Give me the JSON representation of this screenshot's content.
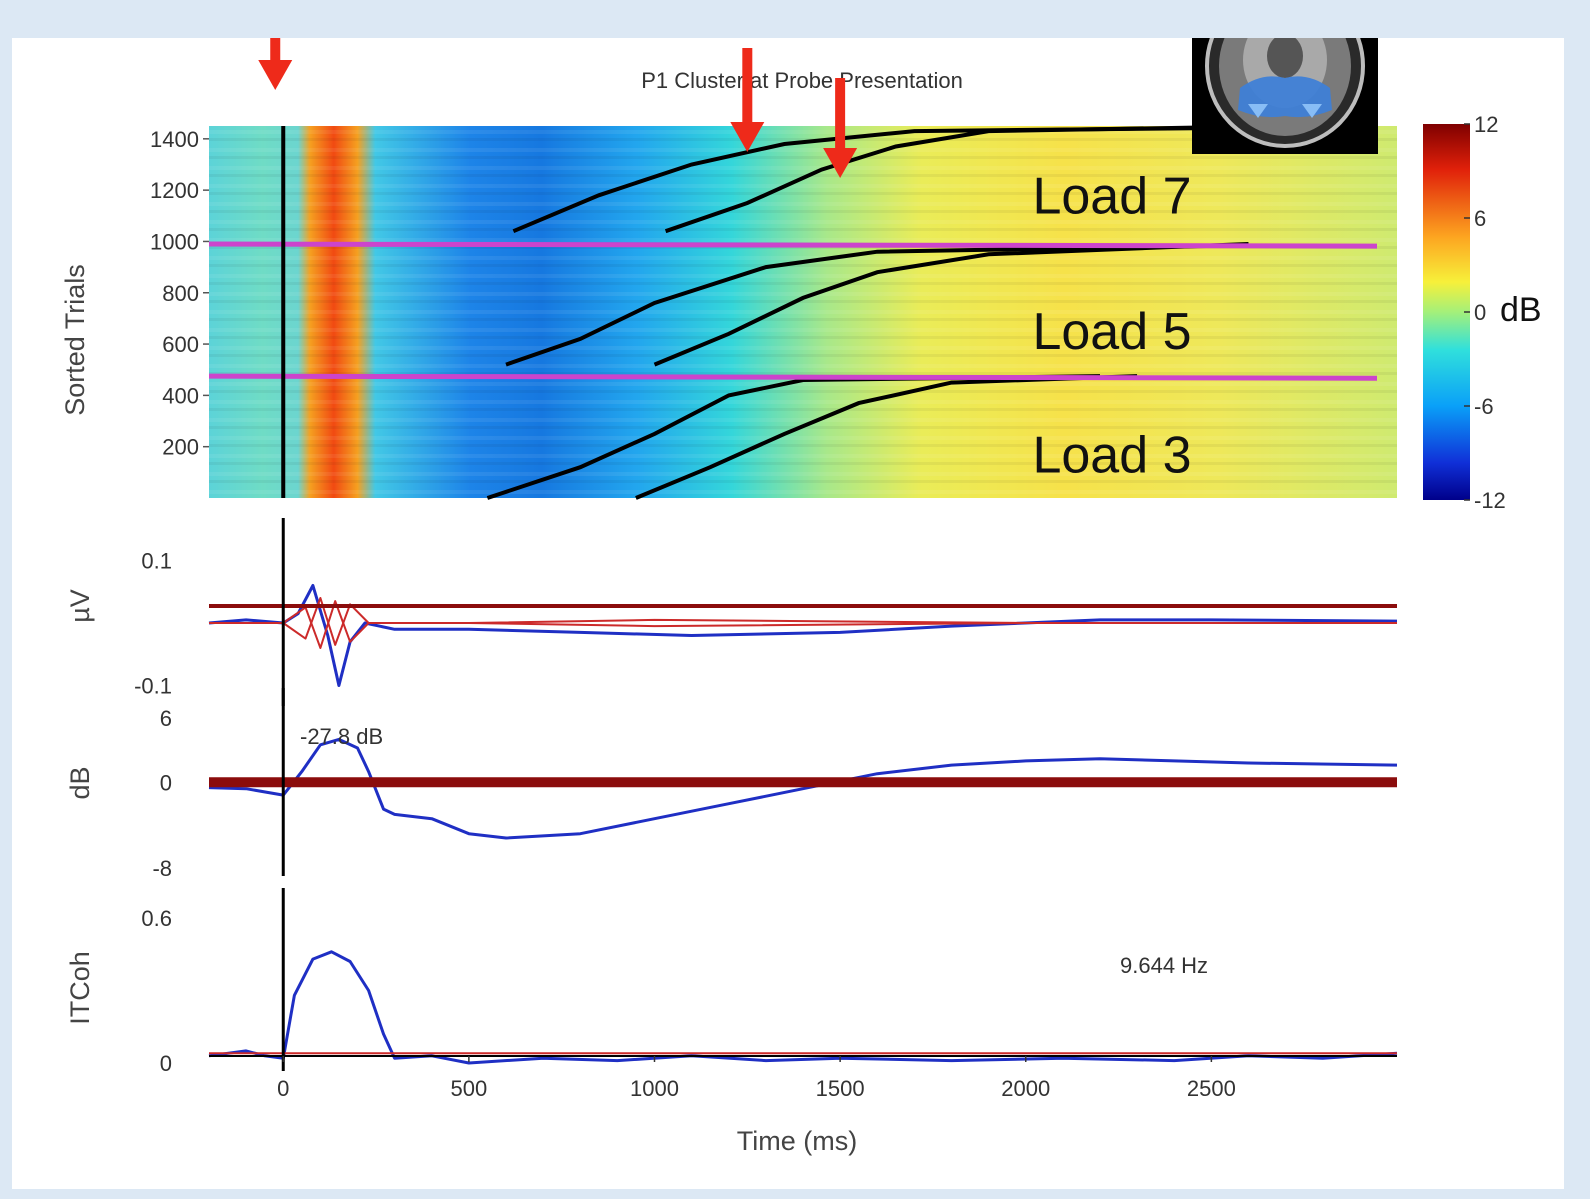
{
  "colors": {
    "background": "#dce8f4",
    "annotation_arrow": "#ee2a1a",
    "divider_line": "#cc44cc",
    "trace_blue": "#1f2fc4",
    "trace_red": "#cc2a2a",
    "baseline_dark_red": "#8b0c0c"
  },
  "brain_inset": {
    "icon": "brain-mri-axial-slice-icon"
  },
  "chart_data": [
    {
      "type": "heatmap",
      "title": "P1 Cluster at Probe Presentation",
      "ylabel": "Sorted Trials",
      "xlim": [
        -200,
        3000
      ],
      "ylim": [
        0,
        1450
      ],
      "yticks": [
        200,
        400,
        600,
        800,
        1000,
        1200,
        1400
      ],
      "colorbar": {
        "ticks": [
          12,
          6,
          0,
          -6,
          -12
        ],
        "unit": "dB",
        "range": [
          -12,
          12
        ]
      },
      "condition_labels": [
        {
          "text": "Load 7",
          "y": 1180
        },
        {
          "text": "Load 5",
          "y": 650
        },
        {
          "text": "Load 3",
          "y": 170
        }
      ],
      "condition_dividers_trials": [
        990,
        475
      ],
      "event_line_ms": 0,
      "annotation_arrows_ms": [
        0,
        1250,
        1500
      ],
      "rt_curves": [
        {
          "points": [
            [
              550,
              0
            ],
            [
              800,
              120
            ],
            [
              1000,
              250
            ],
            [
              1200,
              400
            ],
            [
              1400,
              460
            ],
            [
              2200,
              475
            ]
          ]
        },
        {
          "points": [
            [
              950,
              0
            ],
            [
              1150,
              120
            ],
            [
              1350,
              250
            ],
            [
              1550,
              370
            ],
            [
              1800,
              450
            ],
            [
              2300,
              475
            ]
          ]
        },
        {
          "points": [
            [
              600,
              520
            ],
            [
              800,
              620
            ],
            [
              1000,
              760
            ],
            [
              1300,
              900
            ],
            [
              1600,
              960
            ],
            [
              2600,
              985
            ]
          ]
        },
        {
          "points": [
            [
              1000,
              520
            ],
            [
              1200,
              640
            ],
            [
              1400,
              780
            ],
            [
              1600,
              880
            ],
            [
              1900,
              950
            ],
            [
              2600,
              990
            ]
          ]
        },
        {
          "points": [
            [
              620,
              1040
            ],
            [
              850,
              1180
            ],
            [
              1100,
              1300
            ],
            [
              1350,
              1380
            ],
            [
              1700,
              1430
            ],
            [
              2700,
              1445
            ]
          ]
        },
        {
          "points": [
            [
              1030,
              1040
            ],
            [
              1250,
              1150
            ],
            [
              1450,
              1280
            ],
            [
              1650,
              1370
            ],
            [
              1900,
              1430
            ],
            [
              2700,
              1450
            ]
          ]
        }
      ]
    },
    {
      "type": "line",
      "ylabel": "µV",
      "xlim": [
        -200,
        3000
      ],
      "ylim": [
        -0.12,
        0.12
      ],
      "ytick_labels": [
        "0.1",
        "-0.1"
      ],
      "yticks": [
        0.1,
        -0.1
      ],
      "series": [
        {
          "color": "#1f2fc4",
          "points": [
            [
              -200,
              0.0
            ],
            [
              -100,
              0.005
            ],
            [
              0,
              0.0
            ],
            [
              40,
              0.015
            ],
            [
              80,
              0.06
            ],
            [
              120,
              -0.02
            ],
            [
              150,
              -0.1
            ],
            [
              180,
              -0.03
            ],
            [
              220,
              0.0
            ],
            [
              300,
              -0.01
            ],
            [
              500,
              -0.01
            ],
            [
              800,
              -0.015
            ],
            [
              1100,
              -0.02
            ],
            [
              1500,
              -0.015
            ],
            [
              1800,
              -0.005
            ],
            [
              2200,
              0.005
            ],
            [
              2500,
              0.005
            ],
            [
              3000,
              0.003
            ]
          ]
        },
        {
          "color": "#cc2a2a",
          "points": [
            [
              -200,
              0.0
            ],
            [
              0,
              0.0
            ],
            [
              60,
              -0.025
            ],
            [
              100,
              0.04
            ],
            [
              140,
              -0.035
            ],
            [
              180,
              0.03
            ],
            [
              230,
              0.0
            ],
            [
              500,
              0.0
            ],
            [
              1000,
              0.005
            ],
            [
              2000,
              0.0
            ],
            [
              3000,
              0.0
            ]
          ]
        },
        {
          "color": "#cc2a2a",
          "points": [
            [
              -200,
              0.0
            ],
            [
              0,
              0.0
            ],
            [
              60,
              0.025
            ],
            [
              100,
              -0.04
            ],
            [
              140,
              0.035
            ],
            [
              180,
              -0.03
            ],
            [
              230,
              0.0
            ],
            [
              500,
              0.0
            ],
            [
              1000,
              -0.005
            ],
            [
              2000,
              0.0
            ],
            [
              3000,
              0.0
            ]
          ]
        }
      ]
    },
    {
      "type": "line",
      "ylabel": "dB",
      "xlim": [
        -200,
        3000
      ],
      "ylim": [
        -8,
        6
      ],
      "ytick_labels": [
        "6",
        "0",
        "-8"
      ],
      "yticks": [
        6,
        0,
        -8
      ],
      "annotation": "-27.8 dB",
      "series": [
        {
          "color": "#1f2fc4",
          "points": [
            [
              -200,
              -0.5
            ],
            [
              -100,
              -0.6
            ],
            [
              0,
              -1.2
            ],
            [
              50,
              1.0
            ],
            [
              100,
              3.5
            ],
            [
              150,
              4.0
            ],
            [
              200,
              3.2
            ],
            [
              230,
              1.0
            ],
            [
              270,
              -2.5
            ],
            [
              300,
              -3.0
            ],
            [
              400,
              -3.4
            ],
            [
              500,
              -4.8
            ],
            [
              600,
              -5.2
            ],
            [
              800,
              -4.8
            ],
            [
              1000,
              -3.4
            ],
            [
              1200,
              -2.0
            ],
            [
              1400,
              -0.6
            ],
            [
              1600,
              0.8
            ],
            [
              1800,
              1.6
            ],
            [
              2000,
              2.0
            ],
            [
              2200,
              2.2
            ],
            [
              2400,
              2.0
            ],
            [
              2600,
              1.8
            ],
            [
              3000,
              1.6
            ]
          ]
        },
        {
          "color": "#8b0c0c",
          "points": [
            [
              -200,
              0.0
            ],
            [
              3000,
              0.0
            ]
          ]
        }
      ]
    },
    {
      "type": "line",
      "ylabel": "ITCoh",
      "xlabel": "Time (ms)",
      "xlim": [
        -200,
        3000
      ],
      "ylim": [
        0,
        0.6
      ],
      "xticks": [
        0,
        500,
        1000,
        1500,
        2000,
        2500
      ],
      "ytick_labels": [
        "0.6",
        "0"
      ],
      "yticks": [
        0.6,
        0
      ],
      "annotation": "9.644 Hz",
      "series": [
        {
          "color": "#1f2fc4",
          "points": [
            [
              -200,
              0.03
            ],
            [
              -100,
              0.05
            ],
            [
              -50,
              0.03
            ],
            [
              0,
              0.02
            ],
            [
              30,
              0.28
            ],
            [
              80,
              0.43
            ],
            [
              130,
              0.46
            ],
            [
              180,
              0.42
            ],
            [
              230,
              0.3
            ],
            [
              270,
              0.12
            ],
            [
              300,
              0.02
            ],
            [
              400,
              0.03
            ],
            [
              500,
              0.0
            ],
            [
              700,
              0.02
            ],
            [
              900,
              0.01
            ],
            [
              1100,
              0.03
            ],
            [
              1300,
              0.01
            ],
            [
              1500,
              0.02
            ],
            [
              1800,
              0.01
            ],
            [
              2100,
              0.02
            ],
            [
              2400,
              0.01
            ],
            [
              2600,
              0.03
            ],
            [
              2800,
              0.02
            ],
            [
              3000,
              0.04
            ]
          ]
        },
        {
          "color": "#cc2a2a",
          "points": [
            [
              -200,
              0.04
            ],
            [
              3000,
              0.04
            ]
          ]
        }
      ]
    }
  ]
}
